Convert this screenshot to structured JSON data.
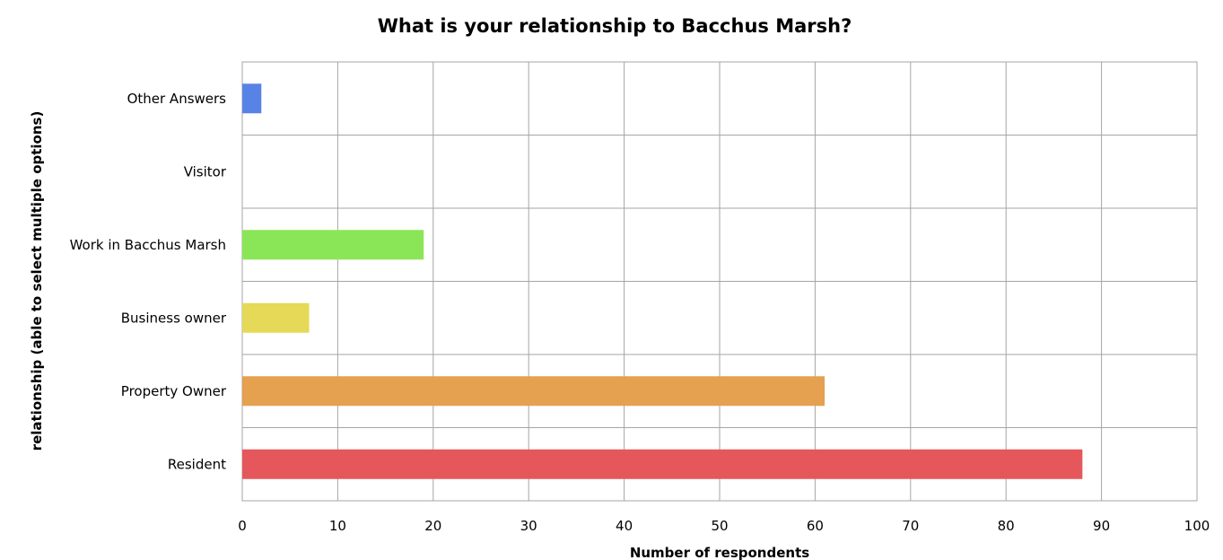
{
  "chart_data": {
    "type": "bar",
    "orientation": "horizontal",
    "title": "What is your relationship to Bacchus Marsh?",
    "xlabel": "Number of respondents",
    "ylabel": "relationship (able to select multiple options)",
    "categories": [
      "Resident",
      "Property Owner",
      "Business owner",
      "Work in Bacchus Marsh",
      "Visitor",
      "Other Answers"
    ],
    "values": [
      88,
      61,
      7,
      19,
      0,
      2
    ],
    "colors": [
      "#e5575a",
      "#e5a050",
      "#e5d957",
      "#8ae657",
      "#ffffff",
      "#5883e6"
    ],
    "xlim": [
      0,
      100
    ],
    "xticks": [
      "0",
      "10",
      "20",
      "30",
      "40",
      "50",
      "60",
      "70",
      "80",
      "90",
      "100"
    ],
    "grid": true,
    "legend": "none"
  }
}
